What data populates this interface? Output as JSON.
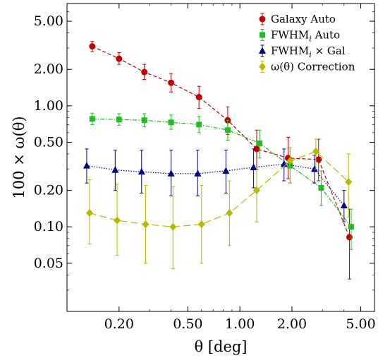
{
  "chart_data": {
    "type": "scatter",
    "xscale": "log",
    "yscale": "log",
    "xlim": [
      0.1,
      6.0
    ],
    "ylim": [
      0.02,
      7.0
    ],
    "xlabel": "θ [deg]",
    "ylabel": "100 × ω(θ)",
    "xticks": [
      0.2,
      0.5,
      1.0,
      2.0,
      5.0
    ],
    "xtick_labels": [
      "0.20",
      "0.50",
      "1.00",
      "2.00",
      "5.00"
    ],
    "yticks": [
      0.05,
      0.1,
      0.2,
      0.5,
      1.0,
      2.0,
      5.0
    ],
    "ytick_labels": [
      "0.05",
      "0.10",
      "0.20",
      "0.50",
      "1.00",
      "2.00",
      "5.00"
    ],
    "grid": false,
    "legend_position": "top-right",
    "series": [
      {
        "name": "Galaxy Auto",
        "color": "#c00000",
        "marker": "circle",
        "line_style": "dashed",
        "points": [
          {
            "x": 0.14,
            "y": 3.1,
            "lo": 2.8,
            "hi": 3.4
          },
          {
            "x": 0.2,
            "y": 2.45,
            "lo": 2.2,
            "hi": 2.75
          },
          {
            "x": 0.28,
            "y": 1.9,
            "lo": 1.65,
            "hi": 2.2
          },
          {
            "x": 0.4,
            "y": 1.55,
            "lo": 1.3,
            "hi": 1.85
          },
          {
            "x": 0.58,
            "y": 1.18,
            "lo": 0.95,
            "hi": 1.45
          },
          {
            "x": 0.85,
            "y": 0.76,
            "lo": 0.58,
            "hi": 0.98
          },
          {
            "x": 1.25,
            "y": 0.44,
            "lo": 0.3,
            "hi": 0.63
          },
          {
            "x": 1.9,
            "y": 0.37,
            "lo": 0.25,
            "hi": 0.55
          },
          {
            "x": 2.85,
            "y": 0.36,
            "lo": 0.24,
            "hi": 0.53
          },
          {
            "x": 4.3,
            "y": 0.082,
            "lo": 0.037,
            "hi": 0.14
          }
        ]
      },
      {
        "name": "FWHM_i Auto",
        "color": "#22bb22",
        "marker": "square",
        "line_style": "dash-dot",
        "points": [
          {
            "x": 0.14,
            "y": 0.78,
            "lo": 0.7,
            "hi": 0.87
          },
          {
            "x": 0.2,
            "y": 0.77,
            "lo": 0.69,
            "hi": 0.86
          },
          {
            "x": 0.28,
            "y": 0.76,
            "lo": 0.67,
            "hi": 0.86
          },
          {
            "x": 0.4,
            "y": 0.73,
            "lo": 0.64,
            "hi": 0.84
          },
          {
            "x": 0.58,
            "y": 0.7,
            "lo": 0.6,
            "hi": 0.82
          },
          {
            "x": 0.85,
            "y": 0.63,
            "lo": 0.52,
            "hi": 0.76
          },
          {
            "x": 1.3,
            "y": 0.49,
            "lo": 0.37,
            "hi": 0.63
          },
          {
            "x": 1.95,
            "y": 0.32,
            "lo": 0.23,
            "hi": 0.45
          },
          {
            "x": 2.95,
            "y": 0.21,
            "lo": 0.15,
            "hi": 0.29
          },
          {
            "x": 4.4,
            "y": 0.1,
            "lo": 0.065,
            "hi": 0.14
          }
        ]
      },
      {
        "name": "FWHM_i × Gal",
        "color": "#00008b",
        "marker": "triangle",
        "line_style": "dotted",
        "points": [
          {
            "x": 0.13,
            "y": 0.32,
            "lo": 0.23,
            "hi": 0.44
          },
          {
            "x": 0.19,
            "y": 0.295,
            "lo": 0.2,
            "hi": 0.43
          },
          {
            "x": 0.27,
            "y": 0.285,
            "lo": 0.19,
            "hi": 0.43
          },
          {
            "x": 0.4,
            "y": 0.275,
            "lo": 0.18,
            "hi": 0.43
          },
          {
            "x": 0.57,
            "y": 0.275,
            "lo": 0.18,
            "hi": 0.43
          },
          {
            "x": 0.83,
            "y": 0.29,
            "lo": 0.19,
            "hi": 0.43
          },
          {
            "x": 1.2,
            "y": 0.31,
            "lo": 0.21,
            "hi": 0.44
          },
          {
            "x": 1.8,
            "y": 0.33,
            "lo": 0.24,
            "hi": 0.44
          },
          {
            "x": 2.7,
            "y": 0.3,
            "lo": 0.23,
            "hi": 0.39
          },
          {
            "x": 4.0,
            "y": 0.15,
            "lo": 0.11,
            "hi": 0.2
          }
        ]
      },
      {
        "name": "ω(θ) Correction",
        "color": "#b8b800",
        "marker": "diamond",
        "line_style": "long-dashed",
        "points": [
          {
            "x": 0.135,
            "y": 0.13,
            "lo": 0.072,
            "hi": 0.245
          },
          {
            "x": 0.195,
            "y": 0.113,
            "lo": 0.058,
            "hi": 0.225
          },
          {
            "x": 0.285,
            "y": 0.105,
            "lo": 0.05,
            "hi": 0.22
          },
          {
            "x": 0.41,
            "y": 0.1,
            "lo": 0.045,
            "hi": 0.215
          },
          {
            "x": 0.6,
            "y": 0.105,
            "lo": 0.05,
            "hi": 0.22
          },
          {
            "x": 0.87,
            "y": 0.13,
            "lo": 0.07,
            "hi": 0.24
          },
          {
            "x": 1.25,
            "y": 0.2,
            "lo": 0.11,
            "hi": 0.31
          },
          {
            "x": 1.95,
            "y": 0.35,
            "lo": 0.23,
            "hi": 0.45
          },
          {
            "x": 2.75,
            "y": 0.42,
            "lo": 0.3,
            "hi": 0.53
          },
          {
            "x": 4.25,
            "y": 0.235,
            "lo": 0.12,
            "hi": 0.4
          }
        ]
      }
    ]
  },
  "legend": [
    {
      "base": "Galaxy Auto",
      "sub": "",
      "suffix": ""
    },
    {
      "base": "FWHM",
      "sub": "i",
      "suffix": " Auto"
    },
    {
      "base": "FWHM",
      "sub": "i",
      "suffix": " × Gal"
    },
    {
      "base": "ω(θ) Correction",
      "sub": "",
      "suffix": ""
    }
  ]
}
